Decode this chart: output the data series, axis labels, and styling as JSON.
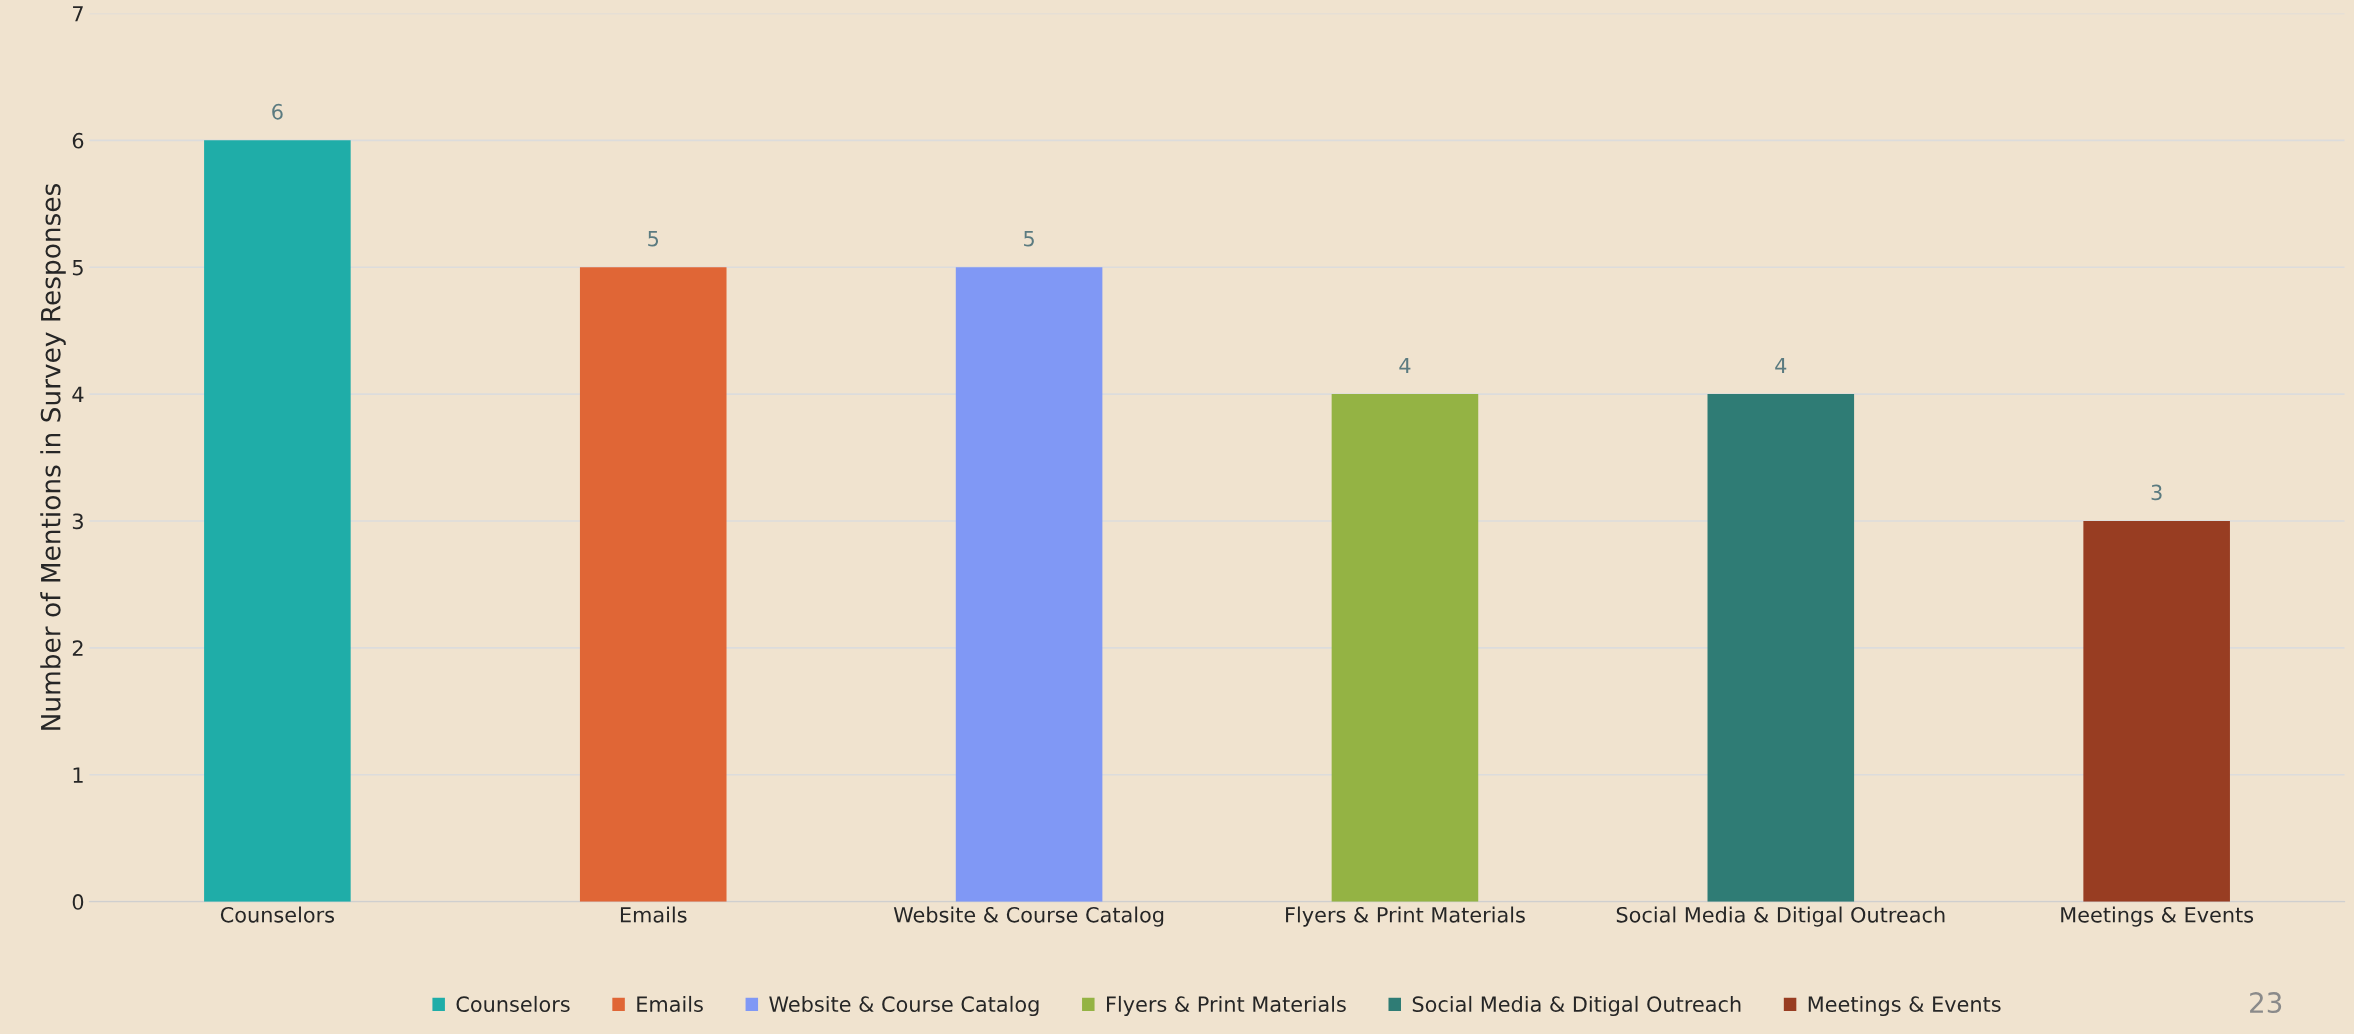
{
  "chart_data": {
    "type": "bar",
    "ylabel": "Number of Mentions in Survey Responses",
    "categories": [
      "Counselors",
      "Emails",
      "Website & Course Catalog",
      "Flyers & Print Materials",
      "Social Media & Ditigal Outreach",
      "Meetings & Events"
    ],
    "series": [
      {
        "name": "Counselors",
        "color": "#1fada8",
        "values": [
          6,
          null,
          null,
          null,
          null,
          null
        ]
      },
      {
        "name": "Emails",
        "color": "#e06636",
        "values": [
          null,
          5,
          null,
          null,
          null,
          null
        ]
      },
      {
        "name": "Website & Course Catalog",
        "color": "#8098f5",
        "values": [
          null,
          null,
          5,
          null,
          null,
          null
        ]
      },
      {
        "name": "Flyers & Print Materials",
        "color": "#94b344",
        "values": [
          null,
          null,
          null,
          4,
          null,
          null
        ]
      },
      {
        "name": "Social Media & Ditigal Outreach",
        "color": "#2f7c75",
        "values": [
          null,
          null,
          null,
          null,
          4,
          null
        ]
      },
      {
        "name": "Meetings & Events",
        "color": "#983d22",
        "values": [
          null,
          null,
          null,
          null,
          null,
          3
        ]
      }
    ],
    "ylim": [
      0,
      7
    ],
    "yticks": [
      0,
      1,
      2,
      3,
      4,
      5,
      6,
      7
    ],
    "grid": "y",
    "legend": "bottom",
    "data_labels": true,
    "annotations": [
      "23"
    ]
  }
}
